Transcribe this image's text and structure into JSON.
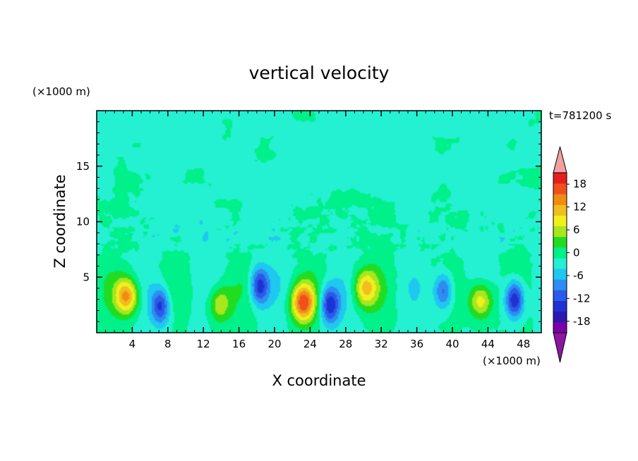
{
  "chart_data": {
    "type": "heatmap",
    "title": "vertical velocity",
    "xlabel": "X coordinate",
    "ylabel": "Z coordinate",
    "x_unit": "(×1000 m)",
    "y_unit": "(×1000 m)",
    "time_label": "t=781200 s",
    "xlim": [
      0,
      50
    ],
    "ylim": [
      0,
      20
    ],
    "x_ticks": [
      4,
      8,
      12,
      16,
      20,
      24,
      28,
      32,
      36,
      40,
      44,
      48
    ],
    "y_ticks": [
      5,
      10,
      15
    ],
    "colorbar": {
      "levels": [
        -21,
        -18,
        -15,
        -12,
        -9,
        -6,
        -3,
        0,
        3,
        6,
        9,
        12,
        15,
        18,
        21
      ],
      "tick_labels": [
        "18",
        "12",
        "6",
        "0",
        "-6",
        "-12",
        "-18"
      ],
      "tick_values": [
        18,
        12,
        6,
        0,
        -6,
        -12,
        -18
      ],
      "colors": [
        "#7b00a8",
        "#2a1ab0",
        "#1e32d2",
        "#2a5ae8",
        "#2f8cf0",
        "#1ec8f0",
        "#24f0d2",
        "#00f08a",
        "#22dc22",
        "#a8e61e",
        "#f0f01e",
        "#f0be1e",
        "#f08c14",
        "#f0501e",
        "#e61e1e"
      ],
      "under_color": "#8c16a0",
      "over_color": "#f0a0a0"
    },
    "features": [
      {
        "kind": "updraft",
        "x": 3.4,
        "z": 3.3,
        "w": 17
      },
      {
        "kind": "downdraft",
        "x": 7.2,
        "z": 2.4,
        "w": -13
      },
      {
        "kind": "updraft",
        "x": 13.8,
        "z": 2.6,
        "w": 10
      },
      {
        "kind": "downdraft",
        "x": 18.3,
        "z": 4.2,
        "w": -14
      },
      {
        "kind": "updraft",
        "x": 23.2,
        "z": 2.7,
        "w": 19
      },
      {
        "kind": "downdraft",
        "x": 26.2,
        "z": 2.5,
        "w": -14
      },
      {
        "kind": "updraft",
        "x": 30.2,
        "z": 4.0,
        "w": 13
      },
      {
        "kind": "downdraft",
        "x": 39.0,
        "z": 3.8,
        "w": -12
      },
      {
        "kind": "updraft",
        "x": 43.2,
        "z": 2.9,
        "w": 13
      },
      {
        "kind": "downdraft",
        "x": 47.0,
        "z": 3.0,
        "w": -17
      }
    ]
  }
}
